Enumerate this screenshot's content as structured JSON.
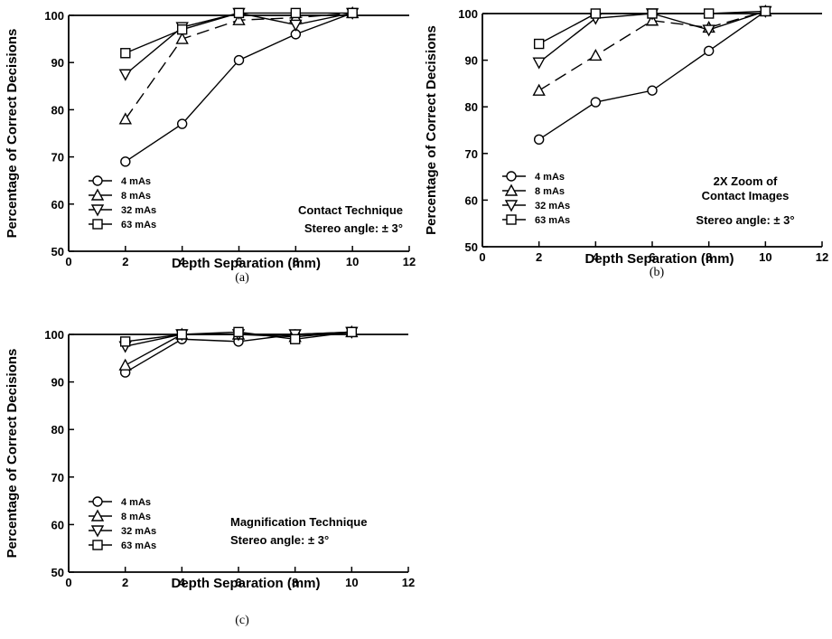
{
  "figure": {
    "charts": [
      {
        "caption": "(a)",
        "annotation_lines": [
          "Contact Technique",
          "Stereo angle: ± 3°"
        ],
        "annotation_align": "end"
      },
      {
        "caption": "(b)",
        "annotation_lines": [
          "2X Zoom of",
          "Contact Images",
          "Stereo angle: ± 3°"
        ],
        "annotation_align": "middle"
      },
      {
        "caption": "(c)",
        "annotation_lines": [
          "Magnification Technique",
          "Stereo angle: ± 3°"
        ],
        "annotation_align": "start"
      }
    ]
  },
  "chart_data": [
    {
      "type": "line",
      "xlabel": "Depth Separation (mm)",
      "ylabel": "Percentage of Correct Decisions",
      "xlim": [
        0,
        12
      ],
      "ylim": [
        50,
        100
      ],
      "xticks": [
        0,
        2,
        4,
        6,
        8,
        10,
        12
      ],
      "yticks": [
        50,
        60,
        70,
        80,
        90,
        100
      ],
      "grid": false,
      "legend_position": "bottom-left",
      "series": [
        {
          "name": "4 mAs",
          "marker": "circle",
          "dash": "solid",
          "x": [
            2,
            4,
            6,
            8,
            10
          ],
          "y": [
            69,
            77,
            90.5,
            96,
            100.5
          ]
        },
        {
          "name": "8 mAs",
          "marker": "triangle-up",
          "dash": "dashed",
          "x": [
            2,
            4,
            6,
            8,
            10
          ],
          "y": [
            78,
            95,
            99,
            99.5,
            100.5
          ]
        },
        {
          "name": "32 mAs",
          "marker": "triangle-down",
          "dash": "solid",
          "x": [
            2,
            4,
            6,
            8,
            10
          ],
          "y": [
            87.5,
            97.5,
            100.5,
            98,
            100.5
          ]
        },
        {
          "name": "63 mAs",
          "marker": "square",
          "dash": "solid",
          "x": [
            2,
            4,
            6,
            8,
            10
          ],
          "y": [
            92,
            97,
            100.5,
            100.5,
            100.5
          ]
        }
      ]
    },
    {
      "type": "line",
      "xlabel": "Depth Separation (mm)",
      "ylabel": "Percentage of Correct Decisions",
      "xlim": [
        0,
        12
      ],
      "ylim": [
        50,
        100
      ],
      "xticks": [
        0,
        2,
        4,
        6,
        8,
        10,
        12
      ],
      "yticks": [
        50,
        60,
        70,
        80,
        90,
        100
      ],
      "grid": false,
      "legend_position": "bottom-left",
      "series": [
        {
          "name": "4 mAs",
          "marker": "circle",
          "dash": "solid",
          "x": [
            2,
            4,
            6,
            8,
            10
          ],
          "y": [
            73,
            81,
            83.5,
            92,
            100.5
          ]
        },
        {
          "name": "8 mAs",
          "marker": "triangle-up",
          "dash": "dashed",
          "x": [
            2,
            4,
            6,
            8,
            10
          ],
          "y": [
            83.5,
            91,
            98.5,
            97,
            100.5
          ]
        },
        {
          "name": "32 mAs",
          "marker": "triangle-down",
          "dash": "solid",
          "x": [
            2,
            4,
            6,
            8,
            10
          ],
          "y": [
            89.5,
            99,
            100,
            96.5,
            100.5
          ]
        },
        {
          "name": "63 mAs",
          "marker": "square",
          "dash": "solid",
          "x": [
            2,
            4,
            6,
            8,
            10
          ],
          "y": [
            93.5,
            100,
            100,
            100,
            100.5
          ]
        }
      ]
    },
    {
      "type": "line",
      "xlabel": "Depth Separation (mm)",
      "ylabel": "Percentage of Correct Decisions",
      "xlim": [
        0,
        12
      ],
      "ylim": [
        50,
        100
      ],
      "xticks": [
        0,
        2,
        4,
        6,
        8,
        10,
        12
      ],
      "yticks": [
        50,
        60,
        70,
        80,
        90,
        100
      ],
      "grid": false,
      "legend_position": "bottom-left",
      "series": [
        {
          "name": "4 mAs",
          "marker": "circle",
          "dash": "solid",
          "x": [
            2,
            4,
            6,
            8,
            10
          ],
          "y": [
            92,
            99,
            98.5,
            100,
            100.5
          ]
        },
        {
          "name": "8 mAs",
          "marker": "triangle-up",
          "dash": "solid",
          "x": [
            2,
            4,
            6,
            8,
            10
          ],
          "y": [
            93.5,
            100,
            100,
            99.5,
            100.5
          ]
        },
        {
          "name": "32 mAs",
          "marker": "triangle-down",
          "dash": "solid",
          "x": [
            2,
            4,
            6,
            8,
            10
          ],
          "y": [
            97.5,
            100,
            100,
            100,
            100.5
          ]
        },
        {
          "name": "63 mAs",
          "marker": "square",
          "dash": "solid",
          "x": [
            2,
            4,
            6,
            8,
            10
          ],
          "y": [
            98.5,
            100,
            100.5,
            99,
            100.5
          ]
        }
      ]
    }
  ]
}
